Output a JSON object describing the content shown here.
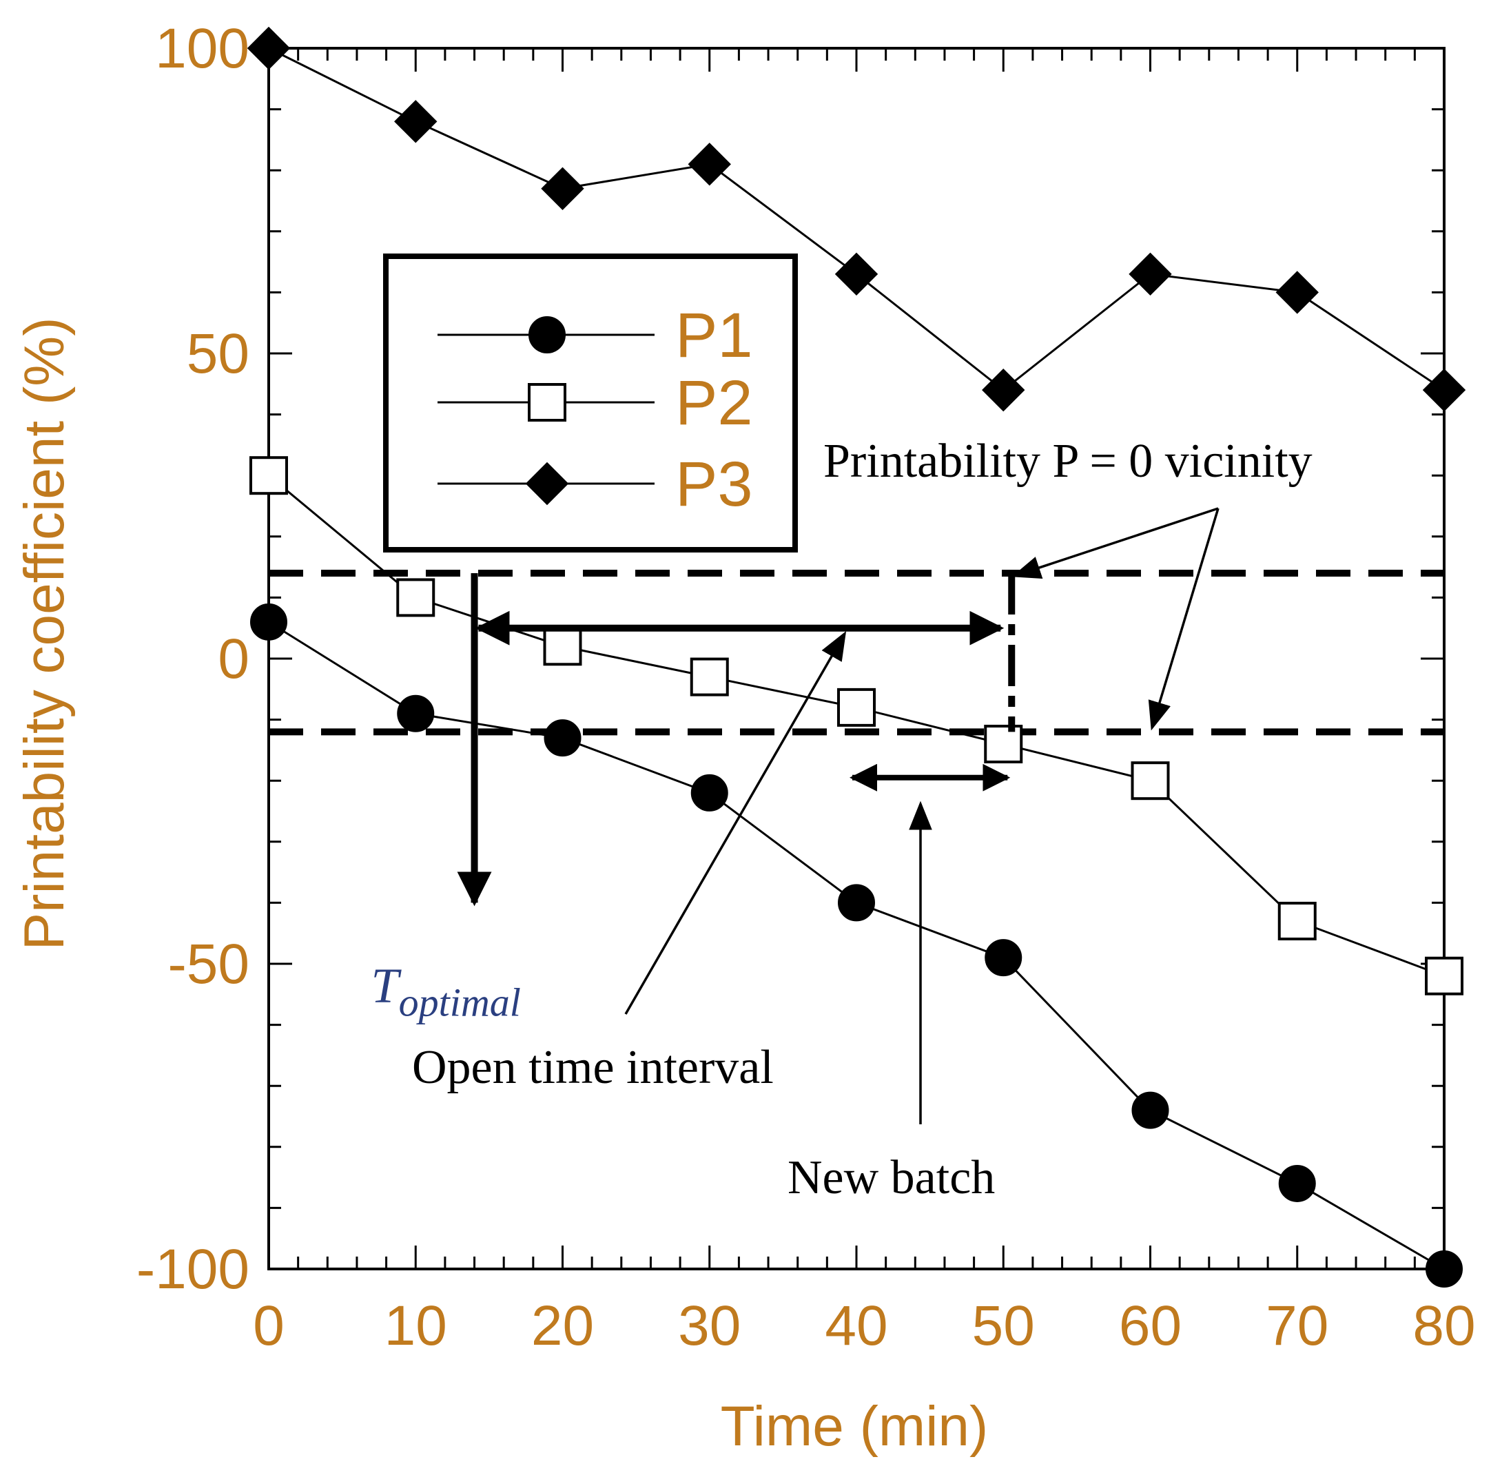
{
  "chart_data": {
    "type": "line",
    "xlabel": "Time (min)",
    "ylabel": "Printability coefficient (%)",
    "xlim": [
      0,
      80
    ],
    "ylim": [
      -100,
      100
    ],
    "x_ticks": [
      "0",
      "10",
      "20",
      "30",
      "40",
      "50",
      "60",
      "70",
      "80"
    ],
    "y_ticks": [
      "100",
      "50",
      "0",
      "-50",
      "-100"
    ],
    "grid": false,
    "legend_position": "upper-left",
    "colors": {
      "text": "#c07a1e",
      "lines": "#000000",
      "t_optimal": "#2a3f80"
    },
    "x": [
      0,
      10,
      20,
      30,
      40,
      50,
      60,
      70,
      80
    ],
    "series": [
      {
        "name": "P1",
        "marker": "filled-circle",
        "values": [
          6,
          -9,
          -13,
          -22,
          -40,
          -49,
          -74,
          -86,
          -100
        ]
      },
      {
        "name": "P2",
        "marker": "open-square",
        "values": [
          30,
          10,
          2,
          -3,
          -8,
          -14,
          -20,
          -43,
          -52
        ]
      },
      {
        "name": "P3",
        "marker": "filled-diamond",
        "values": [
          100,
          88,
          77,
          81,
          63,
          44,
          63,
          60,
          44
        ]
      }
    ],
    "reference_lines": {
      "upper": 14,
      "lower": -12,
      "style": "dashed"
    },
    "annotations": {
      "t_optimal": {
        "letter": "T",
        "subscript": "optimal",
        "x": 14
      },
      "vicinity": {
        "text": "Printability  P = 0 vicinity"
      },
      "open_interval": {
        "text": "Open time interval",
        "x_start": 14,
        "x_end": 50,
        "y": 5
      },
      "new_batch": {
        "text": "New batch",
        "x_start": 40,
        "x_end": 50,
        "y": -19.5
      }
    }
  }
}
